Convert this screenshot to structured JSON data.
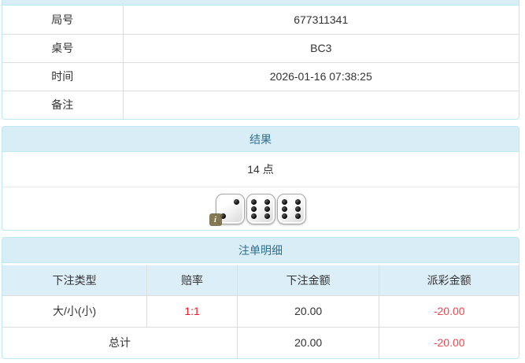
{
  "info_table": {
    "rows": [
      {
        "label": "局号",
        "value": "677311341"
      },
      {
        "label": "桌号",
        "value": "BC3"
      },
      {
        "label": "时间",
        "value": "2026-01-16 07:38:25"
      },
      {
        "label": "备注",
        "value": ""
      }
    ]
  },
  "result_panel": {
    "title": "结果",
    "points": "14 点",
    "dice": [
      2,
      6,
      6
    ],
    "info_badge": "i"
  },
  "bets_panel": {
    "title": "注单明细",
    "columns": [
      "下注类型",
      "赔率",
      "下注金额",
      "派彩金额"
    ],
    "rows": [
      {
        "bet_type": "大/小(小)",
        "odds": "1:1",
        "bet_amount": "20.00",
        "payout": "-20.00"
      }
    ],
    "total": {
      "label": "总计",
      "bet_amount": "20.00",
      "payout": "-20.00"
    }
  },
  "colors": {
    "panel_border": "#bce8f1",
    "heading_bg": "#d9edf7",
    "heading_text": "#31708f",
    "table_header_bg": "#dceef7",
    "row_border": "#dddddd",
    "text": "#333333",
    "odds_red": "#ed1c24",
    "negative_red": "#e8494f",
    "badge_bg": "#6f6539"
  }
}
